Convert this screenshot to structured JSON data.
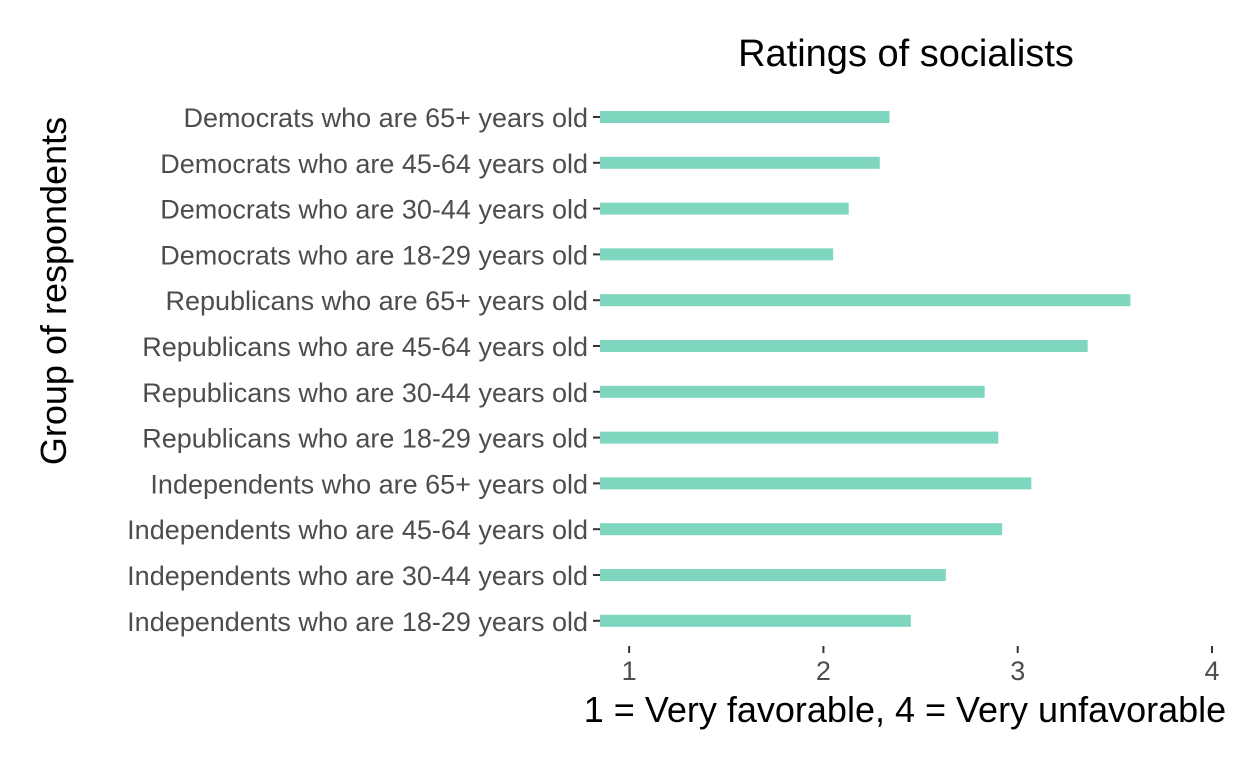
{
  "chart_data": {
    "type": "bar",
    "orientation": "horizontal",
    "title": "Ratings of socialists",
    "xlabel": "1 = Very favorable, 4 = Very unfavorable",
    "ylabel": "Group of respondents",
    "xlim": [
      0.85,
      4.0
    ],
    "xticks": [
      "1",
      "2",
      "3",
      "4"
    ],
    "grid": false,
    "categories": [
      "Democrats who are 65+ years old",
      "Democrats who are 45-64 years old",
      "Democrats who are 30-44 years old",
      "Democrats who are 18-29 years old",
      "Republicans who are 65+ years old",
      "Republicans who are 45-64 years old",
      "Republicans who are 30-44 years old",
      "Republicans who are 18-29 years old",
      "Independents who are 65+ years old",
      "Independents who are 45-64 years old",
      "Independents who are 30-44 years old",
      "Independents who are 18-29 years old"
    ],
    "values": [
      2.34,
      2.29,
      2.13,
      2.05,
      3.58,
      3.36,
      2.83,
      2.9,
      3.07,
      2.92,
      2.63,
      2.45
    ],
    "bar_color": "#7fd6bf"
  }
}
